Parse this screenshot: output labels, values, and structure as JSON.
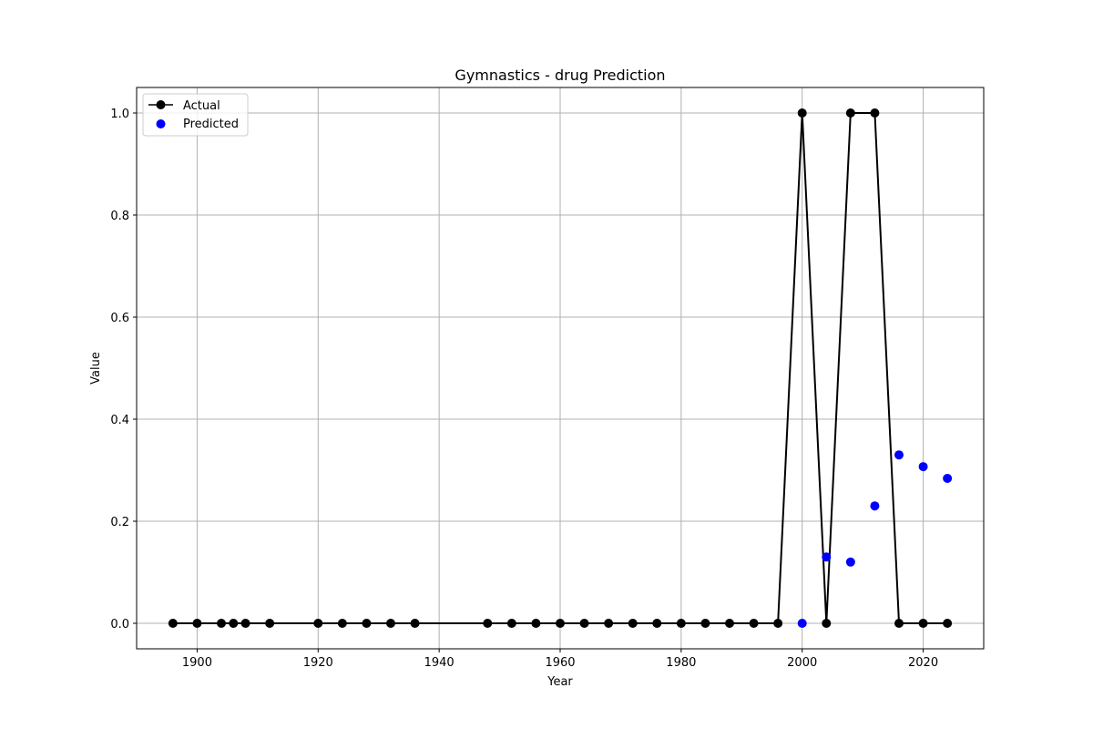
{
  "chart_data": {
    "type": "line",
    "title": "Gymnastics - drug Prediction",
    "xlabel": "Year",
    "ylabel": "Value",
    "xlim": [
      1890,
      2030
    ],
    "ylim": [
      -0.05,
      1.05
    ],
    "xticks": [
      "1900",
      "1920",
      "1940",
      "1960",
      "1980",
      "2000",
      "2020"
    ],
    "yticks": [
      "0.0",
      "0.2",
      "0.4",
      "0.6",
      "0.8",
      "1.0"
    ],
    "grid": true,
    "legend_position": "upper-left",
    "series": [
      {
        "name": "Actual",
        "type": "line",
        "color": "#000000",
        "x": [
          1896,
          1900,
          1904,
          1906,
          1908,
          1912,
          1920,
          1924,
          1928,
          1932,
          1936,
          1948,
          1952,
          1956,
          1960,
          1964,
          1968,
          1972,
          1976,
          1980,
          1984,
          1988,
          1992,
          1996,
          2000,
          2004,
          2008,
          2012,
          2016,
          2020,
          2024
        ],
        "y": [
          0,
          0,
          0,
          0,
          0,
          0,
          0,
          0,
          0,
          0,
          0,
          0,
          0,
          0,
          0,
          0,
          0,
          0,
          0,
          0,
          0,
          0,
          0,
          0,
          1,
          0,
          1,
          1,
          0,
          0,
          0
        ]
      },
      {
        "name": "Predicted",
        "type": "scatter",
        "color": "#0000ff",
        "x": [
          2000,
          2004,
          2008,
          2012,
          2016,
          2020,
          2024
        ],
        "y": [
          0.0,
          0.13,
          0.12,
          0.23,
          0.33,
          0.307,
          0.284
        ]
      }
    ]
  }
}
